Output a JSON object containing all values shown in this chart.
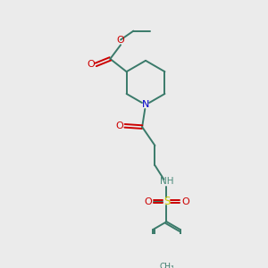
{
  "bg_color": "#ebebeb",
  "bond_color": "#3a7a6a",
  "N_color": "#0000cc",
  "O_color": "#cc0000",
  "S_color": "#cccc00",
  "NH_color": "#4a8a7a",
  "figsize": [
    3.0,
    3.0
  ],
  "dpi": 100,
  "xlim": [
    0,
    10
  ],
  "ylim": [
    0,
    10
  ]
}
